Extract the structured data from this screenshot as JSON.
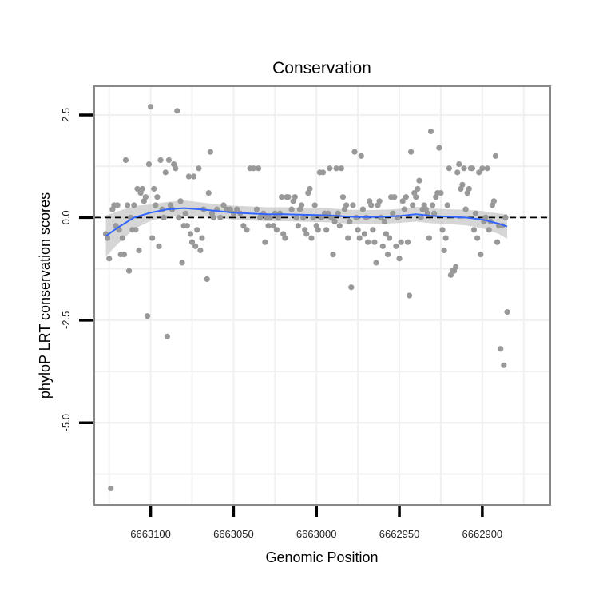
{
  "chart_data": {
    "type": "scatter",
    "title": "Conservation",
    "xlabel": "Genomic Position",
    "ylabel": "phyloP LRT conservation scores",
    "x_reversed": true,
    "xlim": [
      6663134,
      6662859
    ],
    "ylim": [
      -7.0,
      3.2
    ],
    "x_ticks": [
      6663100,
      6663050,
      6663000,
      6662950,
      6662900
    ],
    "x_tick_labels": [
      "6663100",
      "6663050",
      "6663000",
      "6662950",
      "6662900"
    ],
    "y_ticks": [
      2.5,
      0.0,
      -2.5,
      -5.0
    ],
    "y_tick_labels": [
      "2.5",
      "0.0",
      "-2.5",
      "-5.0"
    ],
    "reference_line": {
      "y": 0,
      "style": "dashed",
      "color": "#000000"
    },
    "grid": true,
    "colors": {
      "points": "#999999",
      "smooth": "#3366ff",
      "ribbon": "#c8c8c8",
      "panel_border": "#888888",
      "grid": "#f0f0f0"
    },
    "series": [
      {
        "name": "phyloP",
        "kind": "points",
        "points": [
          [
            6663127,
            -0.4
          ],
          [
            6663126,
            -0.5
          ],
          [
            6663125,
            -1.0
          ],
          [
            6663124,
            -6.6
          ],
          [
            6663123,
            0.2
          ],
          [
            6663122,
            0.3
          ],
          [
            6663121,
            -0.2
          ],
          [
            6663120,
            0.3
          ],
          [
            6663119,
            -0.3
          ],
          [
            6663118,
            -0.9
          ],
          [
            6663117,
            -0.5
          ],
          [
            6663116,
            -0.9
          ],
          [
            6663115,
            1.4
          ],
          [
            6663114,
            0.3
          ],
          [
            6663113,
            -1.3
          ],
          [
            6663112,
            0.0
          ],
          [
            6663111,
            -0.3
          ],
          [
            6663110,
            0.3
          ],
          [
            6663109,
            -0.3
          ],
          [
            6663108,
            0.7
          ],
          [
            6663107,
            -0.8
          ],
          [
            6663106,
            0.6
          ],
          [
            6663105,
            0.7
          ],
          [
            6663104,
            0.4
          ],
          [
            6663103,
            0.5
          ],
          [
            6663102,
            -2.4
          ],
          [
            6663101,
            1.3
          ],
          [
            6663100,
            2.7
          ],
          [
            6663099,
            -0.5
          ],
          [
            6663098,
            0.7
          ],
          [
            6663097,
            0.3
          ],
          [
            6663096,
            0.5
          ],
          [
            6663095,
            -0.7
          ],
          [
            6663094,
            1.4
          ],
          [
            6663093,
            0.2
          ],
          [
            6663092,
            0.0
          ],
          [
            6663091,
            1.1
          ],
          [
            6663090,
            -2.9
          ],
          [
            6663089,
            1.4
          ],
          [
            6663088,
            0.3
          ],
          [
            6663087,
            0.2
          ],
          [
            6663086,
            1.3
          ],
          [
            6663085,
            1.2
          ],
          [
            6663084,
            2.6
          ],
          [
            6663083,
            0.0
          ],
          [
            6663082,
            0.4
          ],
          [
            6663081,
            -1.1
          ],
          [
            6663080,
            -0.2
          ],
          [
            6663079,
            0.1
          ],
          [
            6663078,
            -0.2
          ],
          [
            6663077,
            1.0
          ],
          [
            6663076,
            -0.4
          ],
          [
            6663075,
            -0.6
          ],
          [
            6663074,
            1.0
          ],
          [
            6663073,
            -0.7
          ],
          [
            6663072,
            -0.3
          ],
          [
            6663071,
            1.2
          ],
          [
            6663070,
            -0.8
          ],
          [
            6663069,
            -0.5
          ],
          [
            6663068,
            0.2
          ],
          [
            6663066,
            -1.5
          ],
          [
            6663065,
            0.6
          ],
          [
            6663064,
            1.6
          ],
          [
            6663063,
            0.1
          ],
          [
            6663062,
            0.0
          ],
          [
            6663060,
            0.2
          ],
          [
            6663058,
            0.0
          ],
          [
            6663056,
            0.3
          ],
          [
            6663054,
            0.2
          ],
          [
            6663052,
            0.2
          ],
          [
            6663050,
            0.1
          ],
          [
            6663048,
            0.2
          ],
          [
            6663046,
            0.1
          ],
          [
            6663044,
            -0.2
          ],
          [
            6663042,
            -0.3
          ],
          [
            6663040,
            1.2
          ],
          [
            6663038,
            1.2
          ],
          [
            6663036,
            0.2
          ],
          [
            6663035,
            1.2
          ],
          [
            6663034,
            0.0
          ],
          [
            6663032,
            0.1
          ],
          [
            6663031,
            -0.6
          ],
          [
            6663030,
            0.0
          ],
          [
            6663029,
            -0.2
          ],
          [
            6663028,
            0.0
          ],
          [
            6663026,
            -0.2
          ],
          [
            6663025,
            0.1
          ],
          [
            6663024,
            -0.3
          ],
          [
            6663023,
            0.0
          ],
          [
            6663022,
            0.1
          ],
          [
            6663021,
            0.5
          ],
          [
            6663020,
            -0.4
          ],
          [
            6663019,
            -0.5
          ],
          [
            6663018,
            0.5
          ],
          [
            6663017,
            0.5
          ],
          [
            6663015,
            0.2
          ],
          [
            6663014,
            0.4
          ],
          [
            6663013,
            0.5
          ],
          [
            6663012,
            0.0
          ],
          [
            6663011,
            -0.2
          ],
          [
            6663010,
            0.2
          ],
          [
            6663009,
            0.3
          ],
          [
            6663008,
            0.0
          ],
          [
            6663007,
            -0.3
          ],
          [
            6663006,
            -0.4
          ],
          [
            6663005,
            0.6
          ],
          [
            6663004,
            0.7
          ],
          [
            6663003,
            -0.5
          ],
          [
            6663002,
            0.0
          ],
          [
            6663001,
            0.3
          ],
          [
            6663000,
            -0.2
          ],
          [
            6662999,
            -0.3
          ],
          [
            6662998,
            1.1
          ],
          [
            6662997,
            0.0
          ],
          [
            6662996,
            1.1
          ],
          [
            6662995,
            0.1
          ],
          [
            6662994,
            -0.3
          ],
          [
            6662993,
            0.1
          ],
          [
            6662992,
            1.2
          ],
          [
            6662991,
            0.0
          ],
          [
            6662990,
            -0.9
          ],
          [
            6662989,
            -0.1
          ],
          [
            6662988,
            1.2
          ],
          [
            6662987,
            0.1
          ],
          [
            6662986,
            -0.2
          ],
          [
            6662985,
            1.2
          ],
          [
            6662984,
            0.5
          ],
          [
            6662983,
            0.2
          ],
          [
            6662982,
            0.3
          ],
          [
            6662981,
            -0.5
          ],
          [
            6662980,
            -0.1
          ],
          [
            6662979,
            -1.7
          ],
          [
            6662978,
            0.3
          ],
          [
            6662977,
            1.6
          ],
          [
            6662976,
            0.0
          ],
          [
            6662975,
            -0.3
          ],
          [
            6662974,
            -0.5
          ],
          [
            6662973,
            1.5
          ],
          [
            6662972,
            0.2
          ],
          [
            6662971,
            -0.4
          ],
          [
            6662970,
            0.0
          ],
          [
            6662969,
            -0.6
          ],
          [
            6662968,
            0.4
          ],
          [
            6662967,
            0.3
          ],
          [
            6662966,
            -0.3
          ],
          [
            6662965,
            -0.6
          ],
          [
            6662964,
            -1.1
          ],
          [
            6662963,
            0.3
          ],
          [
            6662962,
            0.4
          ],
          [
            6662961,
            0.0
          ],
          [
            6662960,
            -0.7
          ],
          [
            6662959,
            -0.1
          ],
          [
            6662958,
            -0.4
          ],
          [
            6662957,
            -0.9
          ],
          [
            6662956,
            -0.5
          ],
          [
            6662955,
            0.5
          ],
          [
            6662954,
            0.1
          ],
          [
            6662953,
            0.5
          ],
          [
            6662952,
            -0.7
          ],
          [
            6662951,
            0.0
          ],
          [
            6662950,
            -1.0
          ],
          [
            6662949,
            -0.6
          ],
          [
            6662948,
            0.4
          ],
          [
            6662947,
            0.2
          ],
          [
            6662946,
            0.5
          ],
          [
            6662945,
            -0.6
          ],
          [
            6662944,
            -1.9
          ],
          [
            6662943,
            1.6
          ],
          [
            6662942,
            0.3
          ],
          [
            6662941,
            0.6
          ],
          [
            6662940,
            0.5
          ],
          [
            6662939,
            0.7
          ],
          [
            6662938,
            0.9
          ],
          [
            6662937,
            0.0
          ],
          [
            6662936,
            0.2
          ],
          [
            6662935,
            0.3
          ],
          [
            6662934,
            0.2
          ],
          [
            6662933,
            0.1
          ],
          [
            6662932,
            -0.5
          ],
          [
            6662931,
            2.1
          ],
          [
            6662930,
            0.3
          ],
          [
            6662929,
            0.1
          ],
          [
            6662928,
            0.5
          ],
          [
            6662927,
            0.6
          ],
          [
            6662926,
            1.7
          ],
          [
            6662925,
            0.6
          ],
          [
            6662924,
            -0.3
          ],
          [
            6662923,
            -0.8
          ],
          [
            6662922,
            -0.5
          ],
          [
            6662921,
            0.3
          ],
          [
            6662920,
            1.2
          ],
          [
            6662919,
            -1.4
          ],
          [
            6662918,
            -1.3
          ],
          [
            6662917,
            -1.3
          ],
          [
            6662916,
            -1.2
          ],
          [
            6662915,
            1.1
          ],
          [
            6662914,
            1.3
          ],
          [
            6662913,
            0.7
          ],
          [
            6662912,
            0.8
          ],
          [
            6662911,
            1.2
          ],
          [
            6662910,
            0.2
          ],
          [
            6662909,
            0.6
          ],
          [
            6662908,
            0.7
          ],
          [
            6662907,
            1.2
          ],
          [
            6662906,
            1.2
          ],
          [
            6662905,
            -0.3
          ],
          [
            6662904,
            0.1
          ],
          [
            6662903,
            -0.5
          ],
          [
            6662902,
            1.1
          ],
          [
            6662901,
            -0.9
          ],
          [
            6662900,
            1.2
          ],
          [
            6662899,
            -0.1
          ],
          [
            6662898,
            0.0
          ],
          [
            6662897,
            1.2
          ],
          [
            6662896,
            -0.3
          ],
          [
            6662895,
            -0.1
          ],
          [
            6662894,
            0.3
          ],
          [
            6662893,
            0.4
          ],
          [
            6662892,
            1.5
          ],
          [
            6662891,
            -0.6
          ],
          [
            6662890,
            -0.2
          ],
          [
            6662889,
            -3.2
          ],
          [
            6662888,
            -0.2
          ],
          [
            6662887,
            -3.6
          ],
          [
            6662886,
            0.0
          ],
          [
            6662885,
            -2.3
          ]
        ]
      },
      {
        "name": "smooth",
        "kind": "line",
        "points": [
          [
            6663127,
            -0.45
          ],
          [
            6663120,
            -0.25
          ],
          [
            6663110,
            0.0
          ],
          [
            6663100,
            0.12
          ],
          [
            6663090,
            0.2
          ],
          [
            6663080,
            0.23
          ],
          [
            6663070,
            0.2
          ],
          [
            6663060,
            0.16
          ],
          [
            6663050,
            0.12
          ],
          [
            6663040,
            0.1
          ],
          [
            6663030,
            0.08
          ],
          [
            6663020,
            0.08
          ],
          [
            6663010,
            0.07
          ],
          [
            6663000,
            0.06
          ],
          [
            6662990,
            0.05
          ],
          [
            6662980,
            0.02
          ],
          [
            6662970,
            0.01
          ],
          [
            6662960,
            0.02
          ],
          [
            6662950,
            0.04
          ],
          [
            6662940,
            0.08
          ],
          [
            6662930,
            0.04
          ],
          [
            6662920,
            0.02
          ],
          [
            6662910,
            0.0
          ],
          [
            6662900,
            -0.05
          ],
          [
            6662890,
            -0.15
          ],
          [
            6662885,
            -0.22
          ]
        ],
        "ribbon": [
          [
            6663127,
            -0.95,
            0.05
          ],
          [
            6663120,
            -0.65,
            0.15
          ],
          [
            6663110,
            -0.28,
            0.28
          ],
          [
            6663100,
            -0.08,
            0.32
          ],
          [
            6663090,
            0.02,
            0.38
          ],
          [
            6663080,
            0.04,
            0.42
          ],
          [
            6663070,
            0.03,
            0.37
          ],
          [
            6663060,
            0.0,
            0.32
          ],
          [
            6663050,
            -0.05,
            0.29
          ],
          [
            6663040,
            -0.07,
            0.27
          ],
          [
            6663030,
            -0.09,
            0.25
          ],
          [
            6663020,
            -0.09,
            0.25
          ],
          [
            6663010,
            -0.1,
            0.24
          ],
          [
            6663000,
            -0.11,
            0.23
          ],
          [
            6662990,
            -0.12,
            0.22
          ],
          [
            6662980,
            -0.15,
            0.19
          ],
          [
            6662970,
            -0.16,
            0.18
          ],
          [
            6662960,
            -0.15,
            0.19
          ],
          [
            6662950,
            -0.13,
            0.21
          ],
          [
            6662940,
            -0.1,
            0.26
          ],
          [
            6662930,
            -0.14,
            0.22
          ],
          [
            6662920,
            -0.16,
            0.2
          ],
          [
            6662910,
            -0.19,
            0.19
          ],
          [
            6662900,
            -0.26,
            0.16
          ],
          [
            6662890,
            -0.4,
            0.1
          ],
          [
            6662885,
            -0.52,
            0.08
          ]
        ]
      }
    ]
  }
}
